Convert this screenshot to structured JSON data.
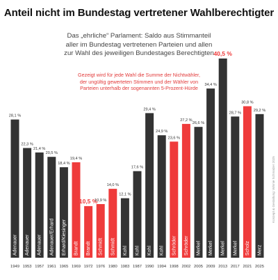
{
  "title": "Anteil nicht im Bundestag vertretener Wahlberechtigter",
  "subtitle_lines": [
    "Das „ehrliche“ Parlament: Saldo aus Stimmanteil",
    "aller im Bundestag vertretenen Parteien und allen",
    "zur Wahl des jeweiligen Bundestages Berechtigten"
  ],
  "note": {
    "line1_a": "Gezeigt wird für jede Wahl ",
    "line1_b": "die Summe der Nichtwähler,",
    "line2": "der ungültig gewerteten Stimmen und der Wähler von",
    "line3": "Parteien unterhalb der sogenannten 5-Prozent-Hürde"
  },
  "credit": "Konzept & Gestaltung: Winnie Schmalzer 2025",
  "colors": {
    "dark": "#333333",
    "red": "#ef3b3b",
    "note": "#e23a3a",
    "title": "#111111"
  },
  "chart_data": {
    "type": "bar",
    "title": "Anteil nicht im Bundestag vertretener Wahlberechtigter",
    "categories": [
      "1949",
      "1953",
      "1957",
      "1961",
      "1965",
      "1969",
      "1972",
      "1976",
      "1980",
      "1983",
      "1987",
      "1990",
      "1994",
      "1998",
      "2002",
      "2005",
      "2009",
      "2013",
      "2017",
      "2021",
      "2025"
    ],
    "values": [
      28.1,
      22.3,
      21.4,
      20.5,
      18.4,
      19.4,
      10.5,
      10.9,
      14.0,
      12.1,
      17.6,
      29.4,
      24.9,
      23.6,
      27.2,
      26.6,
      34.4,
      40.5,
      28.7,
      30.8,
      29.2
    ],
    "value_labels": [
      "28,1 %",
      "22,3 %",
      "21,4 %",
      "20,5 %",
      "18,4 %",
      "19,4 %",
      "10,5 %",
      "10,9 %",
      "14,0 %",
      "12,1 %",
      "17,6 %",
      "29,4 %",
      "24,9 %",
      "23,6 %",
      "27,2 %",
      "26,6 %",
      "34,4 %",
      "40,5 %",
      "28,7 %",
      "30,8 %",
      "29,2 %"
    ],
    "chancellors": [
      "Adenauer",
      "Adenauer",
      "Adenauer",
      "Adenauer/Erhard",
      "Erhard/Kiesinger",
      "Brandt",
      "Brandt",
      "Schmidt",
      "Schmidt",
      "Kohl",
      "Kohl",
      "Kohl",
      "Kohl",
      "Schröder",
      "Schröder",
      "Merkel",
      "Merkel",
      "Merkel",
      "Merkel",
      "Scholz",
      "Merz"
    ],
    "highlight": [
      false,
      false,
      false,
      false,
      false,
      true,
      true,
      true,
      true,
      false,
      false,
      false,
      false,
      true,
      true,
      false,
      false,
      false,
      false,
      true,
      false
    ],
    "highlight_labels": [
      false,
      false,
      false,
      false,
      false,
      false,
      true,
      false,
      false,
      false,
      false,
      false,
      false,
      false,
      false,
      false,
      false,
      true,
      false,
      false,
      false
    ],
    "ylim": [
      0,
      40.5
    ]
  }
}
